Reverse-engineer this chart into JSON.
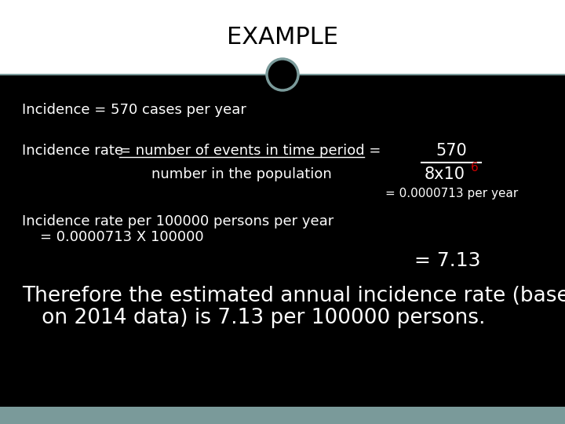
{
  "title": "EXAMPLE",
  "title_color": "#000000",
  "title_bg": "#ffffff",
  "content_bg": "#000000",
  "footer_bg": "#7a9a9a",
  "white": "#ffffff",
  "red": "#cc0000",
  "gray_circle_fill": "#000000",
  "gray_circle_edge": "#7a9a9a",
  "line1": "Incidence = 570 cases per year",
  "line2a": "Incidence rate ",
  "line2b": "= number of events in time period =",
  "line2c": "number in the population",
  "frac_num": "570",
  "frac_den": "8x10",
  "frac_den_sup": "6",
  "result1": "= 0.0000713 per year",
  "line3a": "Incidence rate per 100000 persons per year",
  "line3b": "    = 0.0000713 X 100000",
  "result2": "= 7.13",
  "conclusion1": "Therefore the estimated annual incidence rate (based",
  "conclusion2": "   on 2014 data) is 7.13 per 100000 persons.",
  "font_family": "Georgia",
  "title_fontsize": 22,
  "body_fontsize": 13,
  "small_fontsize": 11,
  "conclusion_fontsize": 19
}
